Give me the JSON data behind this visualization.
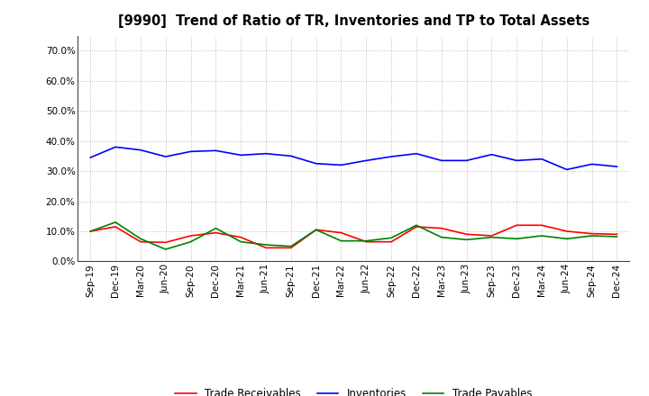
{
  "title": "[9990]  Trend of Ratio of TR, Inventories and TP to Total Assets",
  "x_labels": [
    "Sep-19",
    "Dec-19",
    "Mar-20",
    "Jun-20",
    "Sep-20",
    "Dec-20",
    "Mar-21",
    "Jun-21",
    "Sep-21",
    "Dec-21",
    "Mar-22",
    "Jun-22",
    "Sep-22",
    "Dec-22",
    "Mar-23",
    "Jun-23",
    "Sep-23",
    "Dec-23",
    "Mar-24",
    "Jun-24",
    "Sep-24",
    "Dec-24"
  ],
  "trade_receivables": [
    0.1,
    0.115,
    0.065,
    0.063,
    0.085,
    0.095,
    0.08,
    0.045,
    0.045,
    0.105,
    0.095,
    0.065,
    0.065,
    0.115,
    0.11,
    0.09,
    0.085,
    0.12,
    0.12,
    0.1,
    0.092,
    0.09
  ],
  "inventories": [
    0.345,
    0.38,
    0.37,
    0.348,
    0.365,
    0.368,
    0.353,
    0.358,
    0.35,
    0.325,
    0.32,
    0.335,
    0.348,
    0.358,
    0.335,
    0.335,
    0.355,
    0.335,
    0.34,
    0.305,
    0.323,
    0.315
  ],
  "trade_payables": [
    0.1,
    0.13,
    0.075,
    0.04,
    0.065,
    0.11,
    0.065,
    0.055,
    0.05,
    0.105,
    0.068,
    0.068,
    0.078,
    0.12,
    0.08,
    0.072,
    0.08,
    0.075,
    0.085,
    0.075,
    0.085,
    0.082
  ],
  "ylim": [
    0.0,
    0.75
  ],
  "yticks": [
    0.0,
    0.1,
    0.2,
    0.3,
    0.4,
    0.5,
    0.6,
    0.7
  ],
  "line_color_tr": "#FF0000",
  "line_color_inv": "#0000FF",
  "line_color_tp": "#008000",
  "legend_labels": [
    "Trade Receivables",
    "Inventories",
    "Trade Payables"
  ],
  "background_color": "#FFFFFF",
  "plot_bg_color": "#FFFFFF",
  "grid_color": "#BBBBBB",
  "title_fontsize": 10.5,
  "tick_fontsize": 7.5,
  "legend_fontsize": 8.5
}
